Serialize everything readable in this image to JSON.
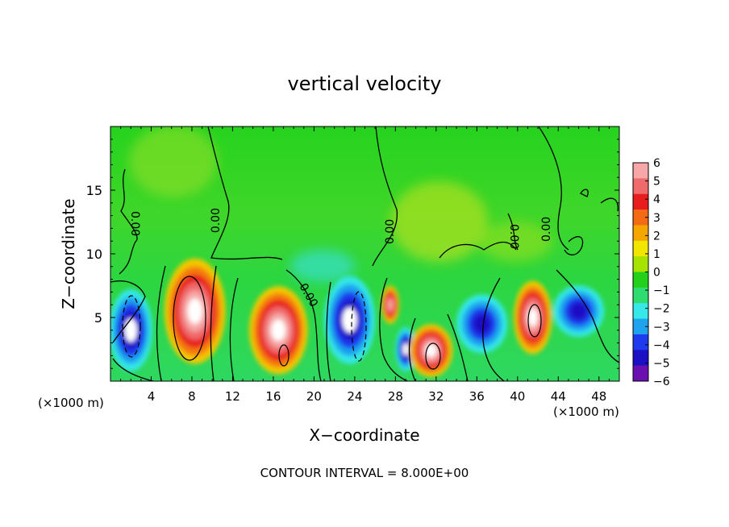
{
  "chart_data": {
    "type": "heatmap",
    "title": "vertical velocity",
    "xlabel": "X−coordinate",
    "ylabel": "Z−coordinate",
    "x_unit_left": "(×1000 m)",
    "x_unit_right": "(×1000 m)",
    "footer": "CONTOUR INTERVAL = 8.000E+00",
    "xlim": [
      0,
      50
    ],
    "ylim": [
      0,
      20
    ],
    "x_ticks": [
      4,
      8,
      12,
      16,
      20,
      24,
      28,
      32,
      36,
      40,
      44,
      48
    ],
    "y_ticks": [
      5,
      10,
      15
    ],
    "x_tick_labels": [
      "4",
      "8",
      "12",
      "16",
      "20",
      "24",
      "28",
      "32",
      "36",
      "40",
      "44",
      "48"
    ],
    "y_tick_labels": [
      "5",
      "10",
      "15"
    ],
    "contour_label": "0.00",
    "colorbar": {
      "min": -6,
      "max": 6,
      "labels": [
        "6",
        "5",
        "4",
        "3",
        "2",
        "1",
        "0",
        "−1",
        "−2",
        "−3",
        "−4",
        "−5",
        "−6"
      ],
      "colors": [
        "#f7a7a7",
        "#ef6b6b",
        "#e81e1e",
        "#f46b16",
        "#f5a500",
        "#f0e600",
        "#a6e400",
        "#23d11b",
        "#2edc70",
        "#36e8e8",
        "#1fa3ee",
        "#1f3bee",
        "#1c10c4",
        "#6a10b0"
      ]
    },
    "features": [
      {
        "type": "updraft",
        "x": 8.3,
        "z": 5.5,
        "w": 4.8,
        "h": 7.2,
        "peak": "above 6"
      },
      {
        "type": "downdraft",
        "x": 2.0,
        "z": 4.0,
        "w": 3.4,
        "h": 5.6,
        "peak": "below -6"
      },
      {
        "type": "updraft",
        "x": 16.5,
        "z": 4.0,
        "w": 4.6,
        "h": 6.0,
        "peak": "above 6"
      },
      {
        "type": "downdraft",
        "x": 23.5,
        "z": 4.8,
        "w": 4.0,
        "h": 6.0,
        "peak": "below -6"
      },
      {
        "type": "updraft",
        "x": 27.5,
        "z": 6.0,
        "w": 1.4,
        "h": 2.6,
        "peak": "about 5"
      },
      {
        "type": "downdraft",
        "x": 29.0,
        "z": 2.5,
        "w": 1.6,
        "h": 3.0,
        "peak": "below -6"
      },
      {
        "type": "updraft",
        "x": 31.5,
        "z": 2.4,
        "w": 3.4,
        "h": 3.6,
        "peak": "above 6"
      },
      {
        "type": "downdraft",
        "x": 36.5,
        "z": 4.5,
        "w": 4.0,
        "h": 4.0,
        "peak": "about -5"
      },
      {
        "type": "updraft",
        "x": 41.5,
        "z": 5.0,
        "w": 3.0,
        "h": 5.0,
        "peak": "above 6"
      },
      {
        "type": "downdraft",
        "x": 46.0,
        "z": 5.5,
        "w": 4.0,
        "h": 3.5,
        "peak": "about -4"
      }
    ]
  }
}
